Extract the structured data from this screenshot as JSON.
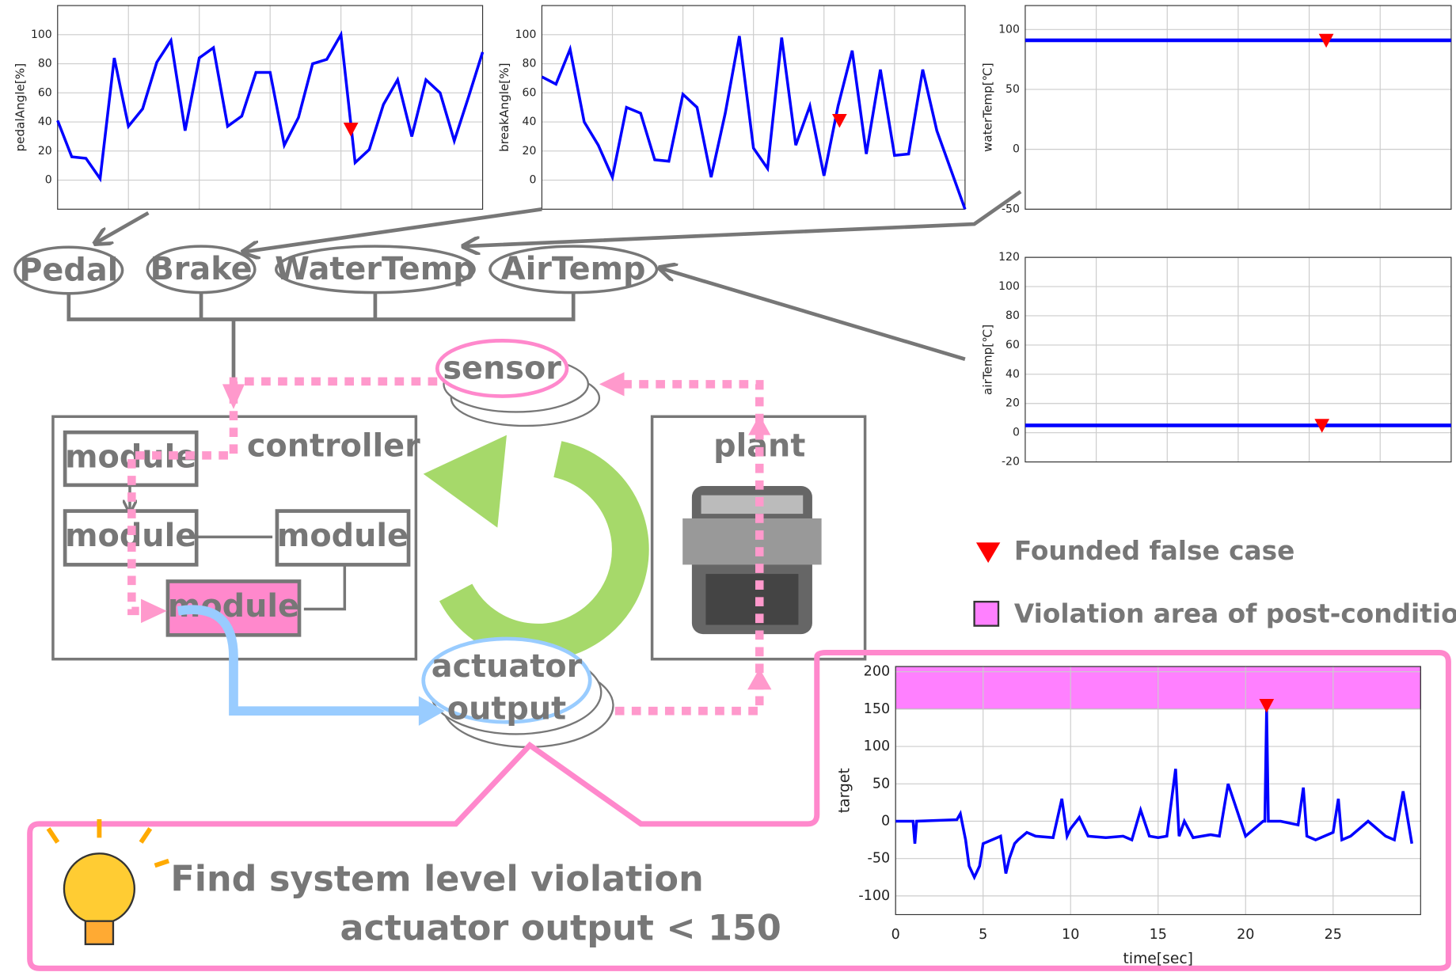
{
  "chart_data": [
    {
      "type": "line",
      "y_label": "pedalAngle[%]",
      "color": "#0000ff",
      "marker_color": "#ff0000",
      "grid": true,
      "x": [
        0,
        1,
        2,
        3,
        4,
        5,
        6,
        7,
        8,
        9,
        10,
        11,
        12,
        13,
        14,
        15,
        16,
        17,
        18,
        19,
        20,
        21,
        22,
        23,
        24,
        25,
        26,
        27,
        28,
        29,
        30
      ],
      "values": [
        41,
        16,
        15,
        1,
        84,
        37,
        49,
        81,
        96,
        34,
        84,
        91,
        37,
        44,
        74,
        74,
        24,
        43,
        80,
        83,
        100,
        12,
        21,
        52,
        69,
        30,
        69,
        60,
        27,
        57,
        88
      ],
      "xlim": [
        0,
        30
      ],
      "ylim": [
        -20,
        120
      ],
      "yticks": [
        0,
        20,
        40,
        60,
        80,
        100
      ],
      "markers": [
        {
          "x": 20.7,
          "y": 35
        }
      ]
    },
    {
      "type": "line",
      "y_label": "breakAngle[%]",
      "color": "#0000ff",
      "marker_color": "#ff0000",
      "grid": true,
      "x": [
        0,
        1,
        2,
        3,
        4,
        5,
        6,
        7,
        8,
        9,
        10,
        11,
        12,
        13,
        14,
        15,
        16,
        17,
        18,
        19,
        20,
        21,
        22,
        23,
        24,
        25,
        26,
        27,
        28,
        29,
        30
      ],
      "values": [
        71,
        66,
        90,
        40,
        24,
        2,
        50,
        46,
        14,
        13,
        59,
        50,
        2,
        46,
        99,
        22,
        8,
        98,
        24,
        51,
        3,
        51,
        89,
        18,
        76,
        17,
        18,
        76,
        34,
        7,
        -20
      ],
      "xlim": [
        0,
        30
      ],
      "ylim": [
        -20,
        120
      ],
      "yticks": [
        0,
        20,
        40,
        60,
        80,
        100
      ],
      "markers": [
        {
          "x": 21.1,
          "y": 41
        }
      ]
    },
    {
      "type": "line",
      "y_label": "waterTemp[℃]",
      "color": "#0000ff",
      "marker_color": "#ff0000",
      "grid": true,
      "x": [
        0,
        30
      ],
      "values": [
        91,
        91
      ],
      "xlim": [
        0,
        30
      ],
      "ylim": [
        -50,
        120
      ],
      "yticks": [
        -50,
        0,
        50,
        100
      ],
      "markers": [
        {
          "x": 21.2,
          "y": 91
        }
      ]
    },
    {
      "type": "line",
      "y_label": "airTemp[℃]",
      "color": "#0000ff",
      "marker_color": "#ff0000",
      "grid": true,
      "x": [
        0,
        30
      ],
      "values": [
        5,
        5
      ],
      "xlim": [
        0,
        30
      ],
      "ylim": [
        -20,
        120
      ],
      "yticks": [
        -20,
        0,
        20,
        40,
        60,
        80,
        100,
        120
      ],
      "markers": [
        {
          "x": 20.9,
          "y": 5
        }
      ]
    },
    {
      "type": "line",
      "y_label": "target",
      "x_label": "time[sec]",
      "color": "#0000ff",
      "marker_color": "#ff0000",
      "grid": true,
      "band_color": "#ff80ff",
      "violation_min": 150,
      "x": [
        0,
        1,
        1.1,
        1.2,
        3.5,
        3.7,
        4.0,
        4.2,
        4.5,
        4.8,
        5.0,
        5.5,
        6,
        6.3,
        6.5,
        6.8,
        7,
        7.5,
        8,
        9,
        9.5,
        9.8,
        10,
        10.5,
        11,
        12,
        13,
        13.5,
        14,
        14.5,
        15,
        15.5,
        16,
        16.2,
        16.5,
        17,
        17.5,
        18,
        18.5,
        19,
        20,
        21,
        21.1,
        21.2,
        21.3,
        22,
        23,
        23.3,
        23.5,
        24,
        25,
        25.3,
        25.5,
        26,
        27,
        28,
        28.5,
        29,
        29.5
      ],
      "values": [
        0,
        0,
        -30,
        0,
        2,
        10,
        -25,
        -60,
        -75,
        -60,
        -30,
        -25,
        -20,
        -70,
        -50,
        -30,
        -25,
        -15,
        -20,
        -22,
        30,
        -20,
        -10,
        5,
        -20,
        -22,
        -20,
        -25,
        15,
        -20,
        -22,
        -20,
        70,
        -20,
        0,
        -22,
        -20,
        -18,
        -20,
        50,
        -20,
        0,
        0,
        150,
        0,
        0,
        -5,
        45,
        -20,
        -25,
        -15,
        30,
        -25,
        -20,
        0,
        -20,
        -25,
        40,
        -30
      ],
      "xlim": [
        0,
        30
      ],
      "xticks": [
        0,
        5,
        10,
        15,
        20,
        25
      ],
      "ylim": [
        -125,
        207
      ],
      "yticks": [
        -100,
        -50,
        0,
        50,
        100,
        150,
        200
      ],
      "markers": [
        {
          "x": 21.2,
          "y": 155
        }
      ]
    }
  ],
  "diagram": {
    "inputs": [
      "Pedal",
      "Brake",
      "WaterTemp",
      "AirTemp"
    ],
    "sensor": "sensor",
    "controller": "controller",
    "modules": [
      "module",
      "module",
      "module",
      "module"
    ],
    "plant": "plant",
    "actuator": [
      "actuator",
      "output"
    ],
    "legend": [
      "Founded false case",
      "Violation area of post-condition"
    ],
    "callout": [
      "Find system level violation",
      "actuator output < 150"
    ]
  }
}
